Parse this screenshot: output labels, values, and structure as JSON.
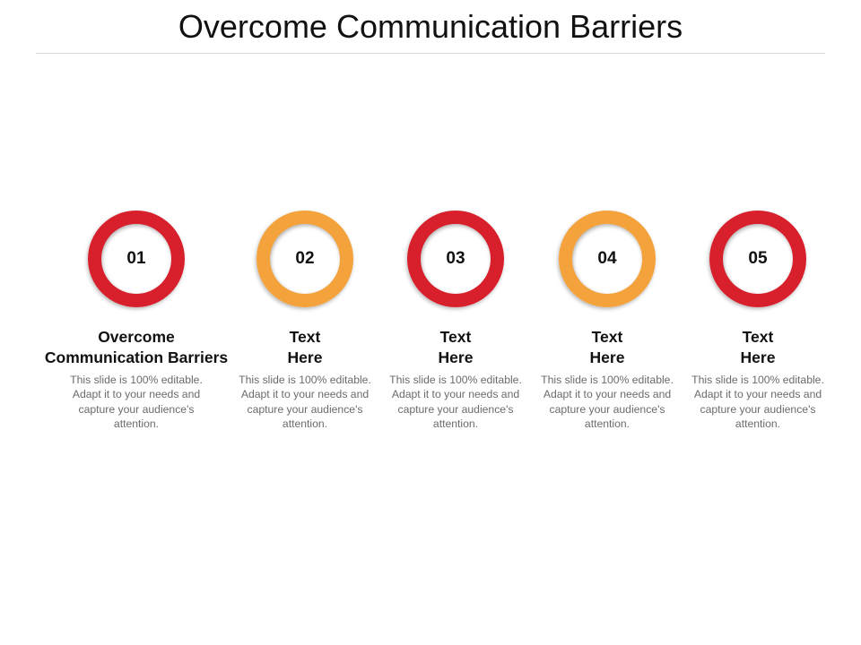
{
  "slide": {
    "title": "Overcome Communication Barriers"
  },
  "colors": {
    "red": "#d7202b",
    "orange": "#f4a23c"
  },
  "steps": [
    {
      "number": "01",
      "heading_line1": "Overcome",
      "heading_line2": "Communication Barriers",
      "body": "This slide is 100% editable. Adapt it to your needs and capture your audience's attention.",
      "ring_color": "#d7202b"
    },
    {
      "number": "02",
      "heading_line1": "Text",
      "heading_line2": "Here",
      "body": "This slide is 100% editable. Adapt it to your needs and capture your audience's attention.",
      "ring_color": "#f4a23c"
    },
    {
      "number": "03",
      "heading_line1": "Text",
      "heading_line2": "Here",
      "body": "This slide is 100% editable. Adapt it to your needs and capture your audience's attention.",
      "ring_color": "#d7202b"
    },
    {
      "number": "04",
      "heading_line1": "Text",
      "heading_line2": "Here",
      "body": "This slide is 100% editable. Adapt it to your needs and capture your audience's attention.",
      "ring_color": "#f4a23c"
    },
    {
      "number": "05",
      "heading_line1": "Text",
      "heading_line2": "Here",
      "body": "This slide is 100% editable. Adapt it to your needs and capture your audience's attention.",
      "ring_color": "#d7202b"
    }
  ]
}
